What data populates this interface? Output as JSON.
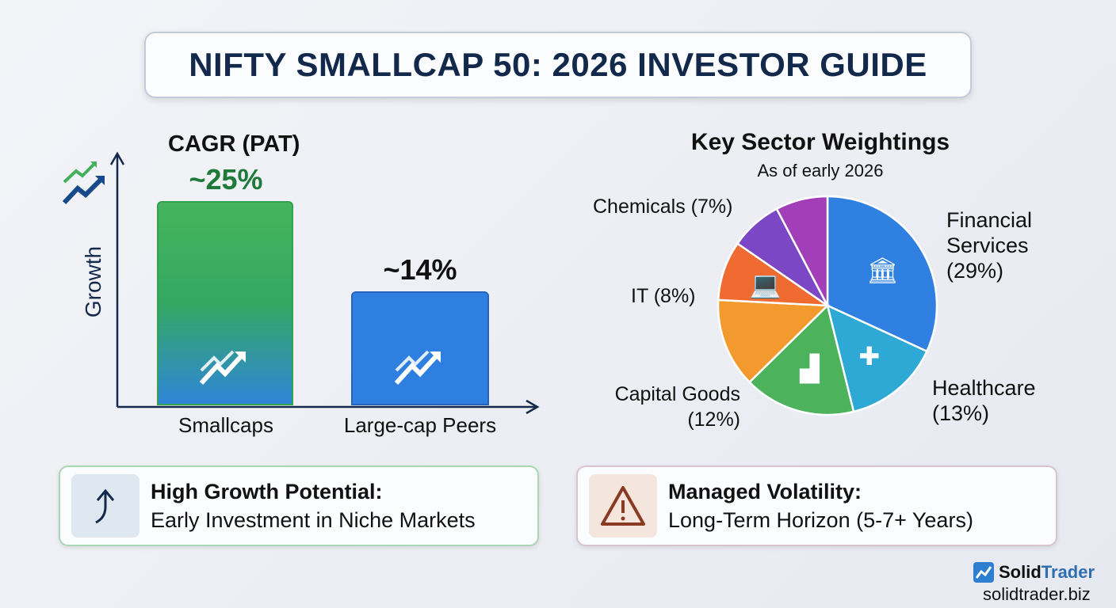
{
  "title": "NIFTY SMALLCAP 50: 2026 INVESTOR GUIDE",
  "chart_data": [
    {
      "type": "bar",
      "title": "CAGR (PAT)",
      "ylabel": "Growth",
      "categories": [
        "Smallcaps",
        "Large-cap Peers"
      ],
      "values": [
        25,
        14
      ],
      "data_labels": [
        "~25%",
        "~14%"
      ],
      "colors": [
        "#3fb05a",
        "#2f7fe0"
      ],
      "ylim": [
        0,
        30
      ],
      "grid": false
    },
    {
      "type": "pie",
      "title": "Key Sector Weightings",
      "subtitle": "As of early 2026",
      "slices": [
        {
          "label": "Financial Services",
          "value_label": "(29%)",
          "value": 29,
          "color": "#2f80e0",
          "icon": "bank-icon"
        },
        {
          "label": "Healthcare",
          "value_label": "(13%)",
          "value": 13,
          "color": "#2ea9d6",
          "icon": "medical-cross-icon"
        },
        {
          "label": "",
          "value": 15,
          "color": "#4cb25c",
          "icon": "factory-icon"
        },
        {
          "label": "Capital Goods",
          "value_label": "(12%)",
          "value": 12,
          "color": "#f39a2e"
        },
        {
          "label": "IT (8%)",
          "value": 8,
          "color": "#ef6b32",
          "icon": "laptop-icon"
        },
        {
          "label": "Chemicals (7%)",
          "value": 7,
          "color": "#7c47c4"
        },
        {
          "label": "",
          "value": 7,
          "color": "#a23fb8"
        }
      ]
    }
  ],
  "cards": [
    {
      "title": "High Growth Potential:",
      "text": "Early Investment in Niche Markets",
      "icon": "arrow-up-icon"
    },
    {
      "title": "Managed Volatility:",
      "text": "Long-Term Horizon (5-7+ Years)",
      "icon": "warning-icon"
    }
  ],
  "brand": {
    "name1": "Solid",
    "name2": "Trader",
    "url": "solidtrader.biz"
  }
}
